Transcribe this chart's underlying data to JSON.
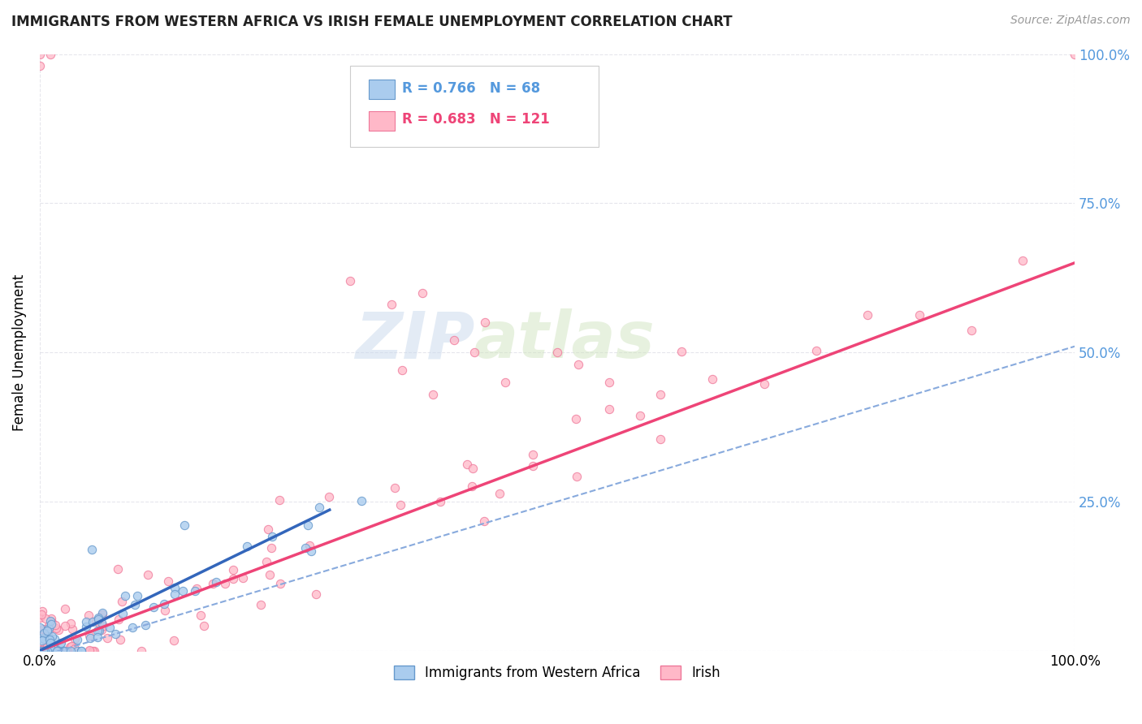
{
  "title": "IMMIGRANTS FROM WESTERN AFRICA VS IRISH FEMALE UNEMPLOYMENT CORRELATION CHART",
  "source": "Source: ZipAtlas.com",
  "ylabel": "Female Unemployment",
  "watermark_part1": "ZIP",
  "watermark_part2": "atlas",
  "background_color": "#ffffff",
  "plot_bg_color": "#ffffff",
  "grid_color": "#e0e0e8",
  "series1_label": "Immigrants from Western Africa",
  "series1_face_color": "#aaccee",
  "series1_edge_color": "#6699cc",
  "series1_line_color": "#3366bb",
  "series1_R": "0.766",
  "series1_N": "68",
  "series2_label": "Irish",
  "series2_face_color": "#ffb8c8",
  "series2_edge_color": "#ee7799",
  "series2_line_color": "#ee4477",
  "series2_R": "0.683",
  "series2_N": "121",
  "dashed_line_color": "#88aadd",
  "right_axis_color": "#5599dd",
  "xlim": [
    0,
    1.0
  ],
  "ylim": [
    0,
    1.0
  ],
  "x_tick_positions": [
    0.0,
    1.0
  ],
  "x_tick_labels": [
    "0.0%",
    "100.0%"
  ],
  "y_tick_positions": [
    0.0,
    0.25,
    0.5,
    0.75,
    1.0
  ],
  "y_right_labels": [
    "",
    "25.0%",
    "50.0%",
    "75.0%",
    "100.0%"
  ],
  "legend_R1": "R = 0.766",
  "legend_N1": "N = 68",
  "legend_R2": "R = 0.683",
  "legend_N2": "N = 121"
}
